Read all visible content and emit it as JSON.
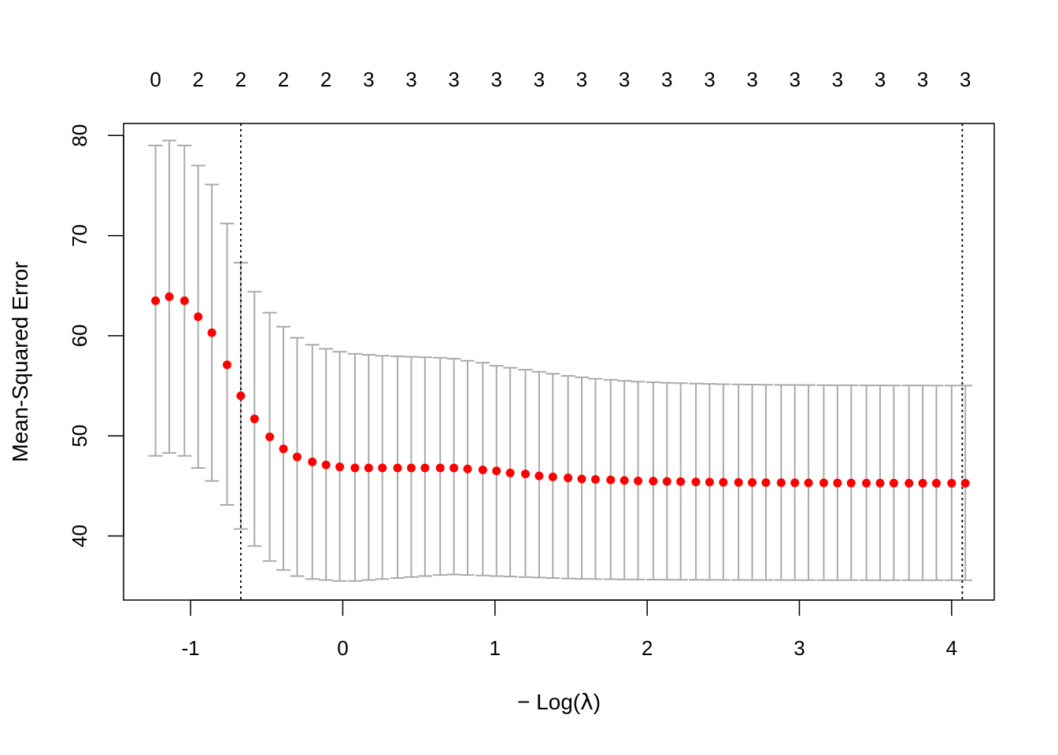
{
  "chart_data": {
    "type": "scatter",
    "xlabel_prefix": "− Log(",
    "xlabel_symbol": "λ",
    "xlabel_suffix": ")",
    "ylabel": "Mean-Squared Error",
    "xlim": [
      -1.44,
      4.28
    ],
    "ylim": [
      33.6,
      81.2
    ],
    "x_ticks": [
      -1,
      0,
      1,
      2,
      3,
      4
    ],
    "x_tick_labels": [
      "-1",
      "0",
      "1",
      "2",
      "3",
      "4"
    ],
    "y_ticks": [
      40,
      50,
      60,
      70,
      80
    ],
    "y_tick_labels": [
      "40",
      "50",
      "60",
      "70",
      "80"
    ],
    "top_axis": {
      "x": [
        -1.23,
        -0.95,
        -0.67,
        -0.39,
        -0.11,
        0.17,
        0.45,
        0.73,
        1.01,
        1.29,
        1.57,
        1.85,
        2.13,
        2.41,
        2.69,
        2.97,
        3.25,
        3.53,
        3.81,
        4.09
      ],
      "labels": [
        "0",
        "2",
        "2",
        "2",
        "2",
        "3",
        "3",
        "3",
        "3",
        "3",
        "3",
        "3",
        "3",
        "3",
        "3",
        "3",
        "3",
        "3",
        "3",
        "3"
      ]
    },
    "vlines": [
      -0.67,
      4.07
    ],
    "colors": {
      "point": "#ff0000",
      "error_bar": "#aaaaaa",
      "vline": "#000000",
      "axis": "#000000"
    },
    "series": [
      {
        "x": [
          -1.23,
          -1.14,
          -1.04,
          -0.95,
          -0.86,
          -0.76,
          -0.67,
          -0.58,
          -0.48,
          -0.39,
          -0.3,
          -0.2,
          -0.11,
          -0.02,
          0.08,
          0.17,
          0.26,
          0.36,
          0.45,
          0.54,
          0.64,
          0.73,
          0.82,
          0.92,
          1.01,
          1.1,
          1.2,
          1.29,
          1.38,
          1.48,
          1.57,
          1.66,
          1.76,
          1.85,
          1.94,
          2.04,
          2.13,
          2.22,
          2.32,
          2.41,
          2.5,
          2.6,
          2.69,
          2.78,
          2.88,
          2.97,
          3.06,
          3.16,
          3.25,
          3.34,
          3.44,
          3.53,
          3.62,
          3.72,
          3.81,
          3.9,
          4.0,
          4.09
        ],
        "y": [
          63.5,
          63.9,
          63.5,
          61.9,
          60.3,
          57.1,
          54.0,
          51.7,
          49.9,
          48.7,
          47.9,
          47.4,
          47.1,
          46.9,
          46.8,
          46.8,
          46.8,
          46.8,
          46.8,
          46.8,
          46.8,
          46.8,
          46.7,
          46.6,
          46.5,
          46.3,
          46.2,
          46.0,
          45.9,
          45.8,
          45.7,
          45.65,
          45.6,
          45.55,
          45.5,
          45.48,
          45.45,
          45.43,
          45.4,
          45.38,
          45.36,
          45.35,
          45.34,
          45.33,
          45.32,
          45.31,
          45.3,
          45.3,
          45.29,
          45.29,
          45.28,
          45.28,
          45.28,
          45.27,
          45.27,
          45.27,
          45.27,
          45.27
        ],
        "upper": [
          79.0,
          79.5,
          79.0,
          77.0,
          75.1,
          71.2,
          67.3,
          64.4,
          62.3,
          60.9,
          59.8,
          59.1,
          58.7,
          58.4,
          58.2,
          58.1,
          58.0,
          57.95,
          57.9,
          57.85,
          57.8,
          57.7,
          57.5,
          57.3,
          57.0,
          56.8,
          56.6,
          56.4,
          56.2,
          56.0,
          55.85,
          55.7,
          55.6,
          55.5,
          55.42,
          55.36,
          55.3,
          55.26,
          55.22,
          55.19,
          55.16,
          55.14,
          55.12,
          55.1,
          55.09,
          55.08,
          55.07,
          55.06,
          55.05,
          55.05,
          55.04,
          55.04,
          55.03,
          55.03,
          55.03,
          55.02,
          55.02,
          55.02
        ],
        "lower": [
          48.0,
          48.3,
          48.0,
          46.8,
          45.5,
          43.1,
          40.7,
          39.0,
          37.5,
          36.6,
          36.0,
          35.7,
          35.6,
          35.5,
          35.5,
          35.6,
          35.7,
          35.8,
          35.9,
          36.0,
          36.1,
          36.15,
          36.1,
          36.05,
          36.0,
          35.95,
          35.9,
          35.85,
          35.8,
          35.75,
          35.72,
          35.7,
          35.68,
          35.66,
          35.65,
          35.64,
          35.63,
          35.62,
          35.62,
          35.61,
          35.61,
          35.6,
          35.6,
          35.6,
          35.6,
          35.59,
          35.59,
          35.59,
          35.59,
          35.59,
          35.58,
          35.58,
          35.58,
          35.58,
          35.58,
          35.58,
          35.58,
          35.58
        ]
      }
    ]
  }
}
